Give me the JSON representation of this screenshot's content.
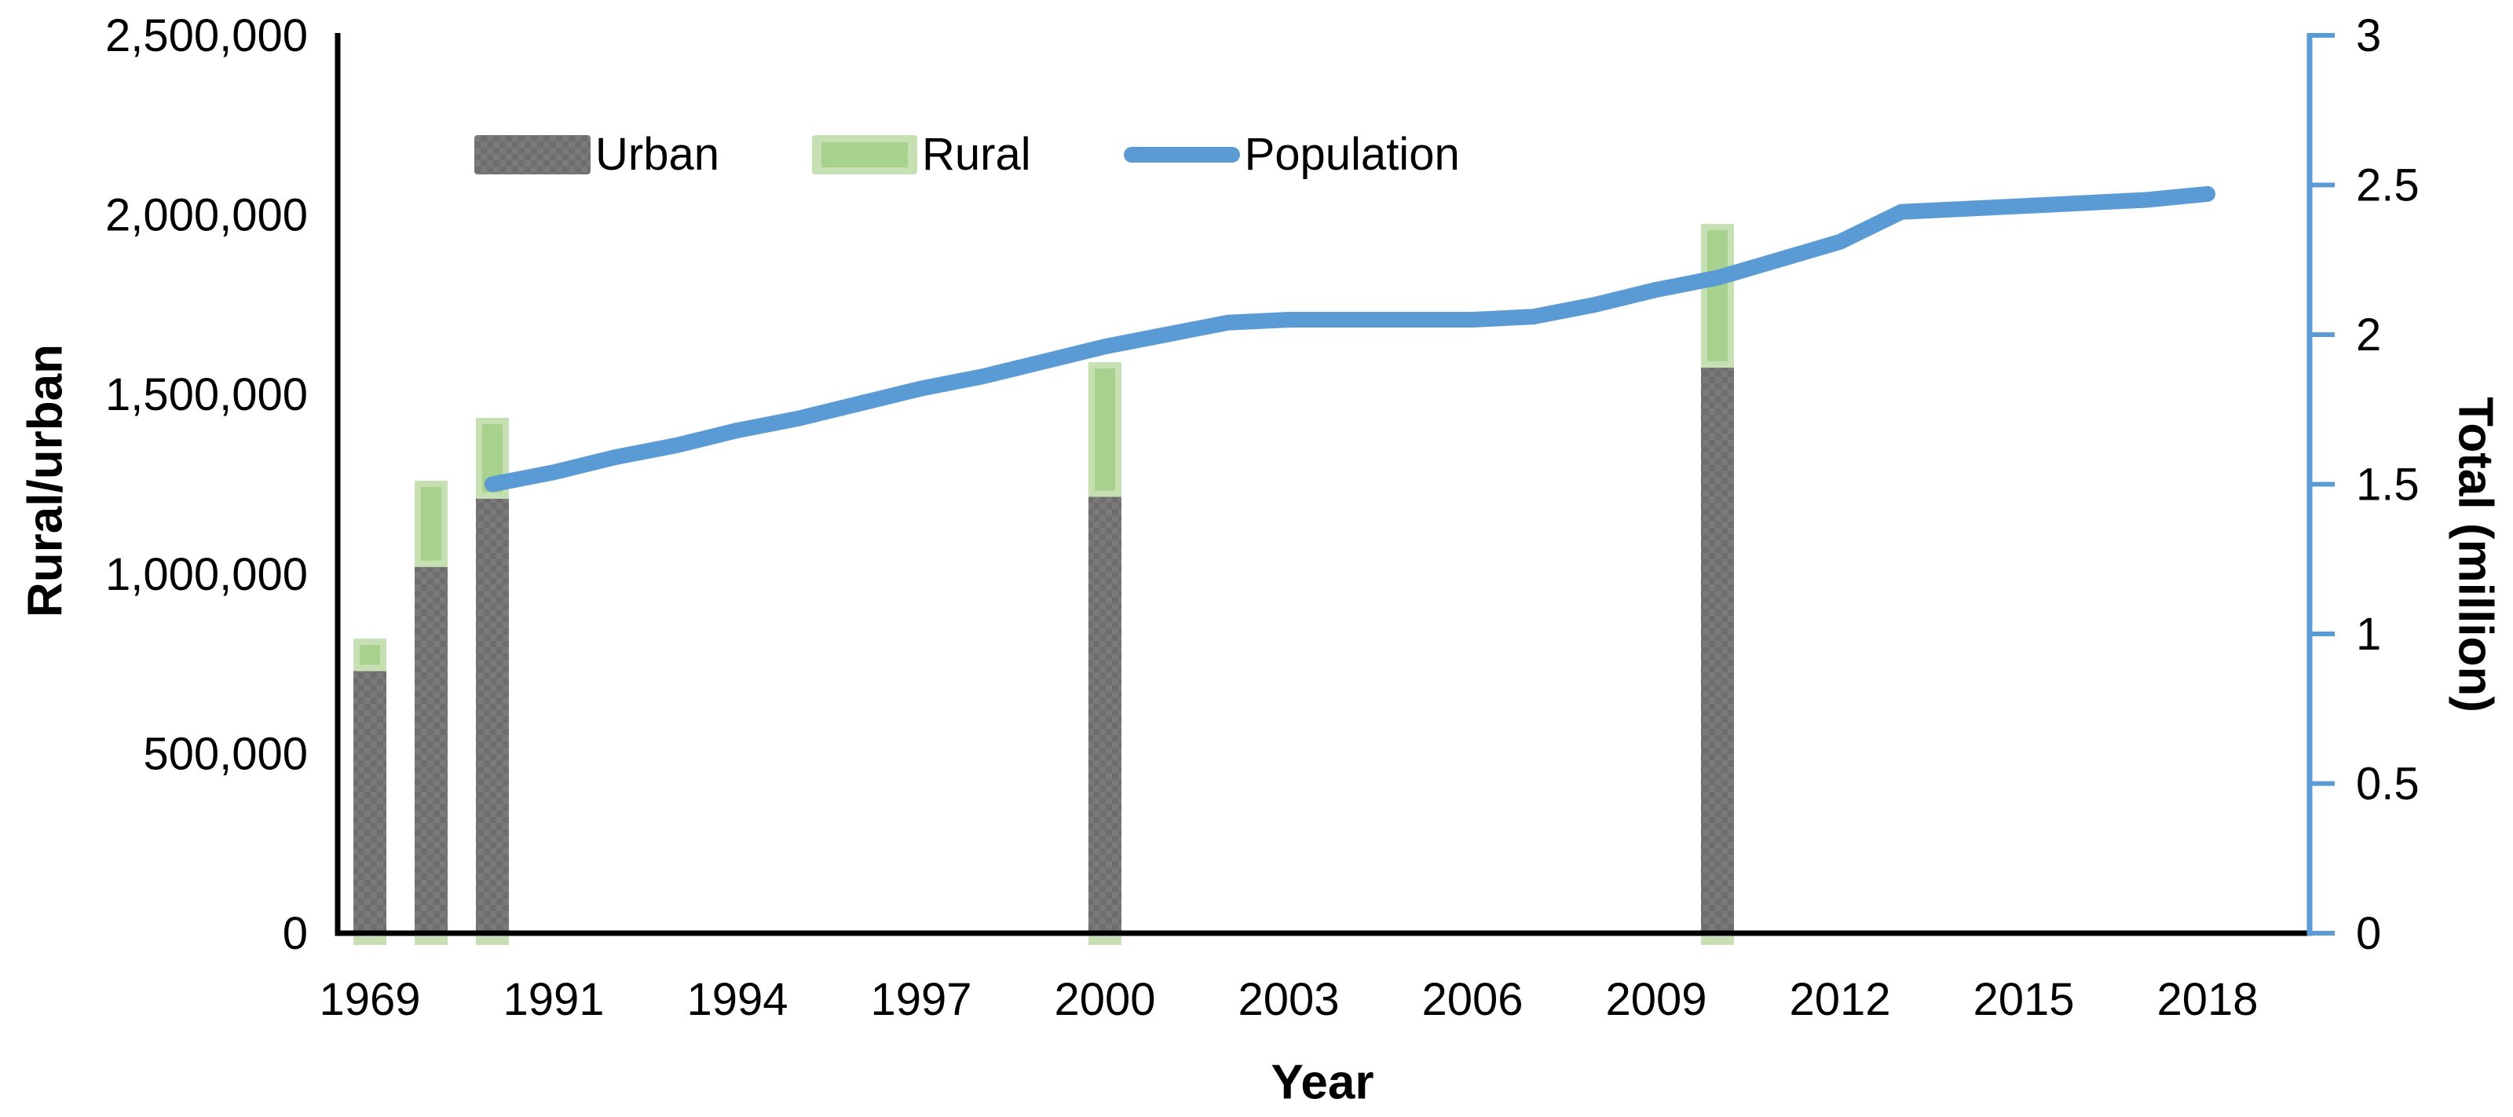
{
  "chart_data": {
    "type": "combo-stacked-bar-line",
    "background": "#ffffff",
    "left_axis": {
      "title": "Rural/urban",
      "min": 0,
      "max": 2500000,
      "tick_step": 500000,
      "tick_labels": [
        "0",
        "500,000",
        "1,000,000",
        "1,500,000",
        "2,000,000",
        "2,500,000"
      ],
      "color": "#000000"
    },
    "right_axis": {
      "title": "Total (million)",
      "min": 0,
      "max": 3,
      "tick_step": 0.5,
      "tick_labels": [
        "0",
        "0.5",
        "1",
        "1.5",
        "2",
        "2.5",
        "3"
      ],
      "color": "#5b9bd5"
    },
    "x_axis": {
      "title": "Year",
      "tick_labels": [
        "1969",
        "1991",
        "1994",
        "1997",
        "2000",
        "2003",
        "2006",
        "2009",
        "2012",
        "2015",
        "2018"
      ],
      "first_tick_year": 1969,
      "gap_years": [
        "1969",
        "1979",
        "1989"
      ],
      "annual_from": 1991,
      "annual_to": 2018
    },
    "legend": [
      {
        "label": "Urban",
        "swatch": "gray-pattern-rect"
      },
      {
        "label": "Rural",
        "swatch": "green-bordered-rect"
      },
      {
        "label": "Population",
        "swatch": "blue-line"
      }
    ],
    "colors": {
      "urban_fill": "#7a7a7a",
      "urban_dot": "#6e6e6e",
      "rural_border": "#c6e0b4",
      "rural_fill": "#a9d18e",
      "population_line": "#5b9bd5",
      "axis_black": "#000000",
      "axis_blue": "#5b9bd5",
      "text": "#000000"
    },
    "bar_series": [
      {
        "name": "Urban",
        "axis": "left"
      },
      {
        "name": "Rural",
        "axis": "left",
        "stacked_on": "Urban"
      }
    ],
    "bars": [
      {
        "year": "1969",
        "urban": 730000,
        "rural": 90000
      },
      {
        "year": "1979",
        "urban": 1020000,
        "rural": 240000
      },
      {
        "year": "1989",
        "urban": 1210000,
        "rural": 225000
      },
      {
        "year": "2000",
        "urban": 1215000,
        "rural": 375000
      },
      {
        "year": "2010",
        "urban": 1575000,
        "rural": 400000
      }
    ],
    "line_series": {
      "name": "Population",
      "axis": "right",
      "unit": "million",
      "points": [
        {
          "year": 1989,
          "value": 1.5
        },
        {
          "year": 1991,
          "value": 1.54
        },
        {
          "year": 1992,
          "value": 1.59
        },
        {
          "year": 1993,
          "value": 1.63
        },
        {
          "year": 1994,
          "value": 1.68
        },
        {
          "year": 1995,
          "value": 1.72
        },
        {
          "year": 1996,
          "value": 1.77
        },
        {
          "year": 1997,
          "value": 1.82
        },
        {
          "year": 1998,
          "value": 1.86
        },
        {
          "year": 1999,
          "value": 1.91
        },
        {
          "year": 2000,
          "value": 1.96
        },
        {
          "year": 2001,
          "value": 2.0
        },
        {
          "year": 2002,
          "value": 2.04
        },
        {
          "year": 2003,
          "value": 2.05
        },
        {
          "year": 2004,
          "value": 2.05
        },
        {
          "year": 2005,
          "value": 2.05
        },
        {
          "year": 2006,
          "value": 2.05
        },
        {
          "year": 2007,
          "value": 2.06
        },
        {
          "year": 2008,
          "value": 2.1
        },
        {
          "year": 2009,
          "value": 2.15
        },
        {
          "year": 2010,
          "value": 2.19
        },
        {
          "year": 2011,
          "value": 2.25
        },
        {
          "year": 2012,
          "value": 2.31
        },
        {
          "year": 2013,
          "value": 2.41
        },
        {
          "year": 2014,
          "value": 2.42
        },
        {
          "year": 2015,
          "value": 2.43
        },
        {
          "year": 2016,
          "value": 2.44
        },
        {
          "year": 2017,
          "value": 2.45
        },
        {
          "year": 2018,
          "value": 2.47
        }
      ]
    }
  }
}
